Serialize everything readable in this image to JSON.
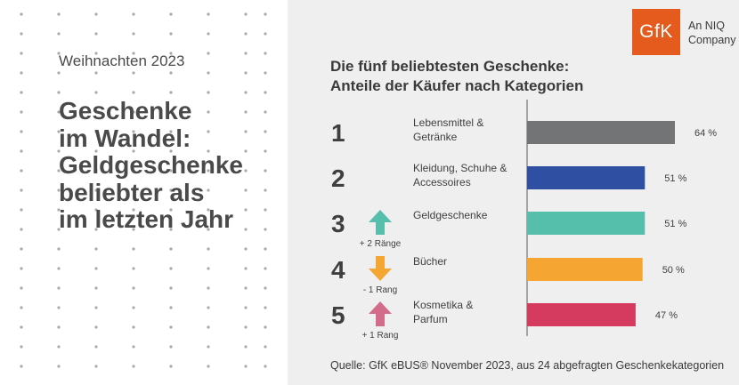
{
  "left": {
    "subtitle": "Weihnachten 2023",
    "title_lines": [
      "Geschenke",
      "im Wandel:",
      "Geldgeschenke",
      "beliebter als",
      "im letzten Jahr"
    ]
  },
  "logo": {
    "mark": "GfK",
    "sub_lines": [
      "An NIQ",
      "Company"
    ],
    "color": "#e55a1d"
  },
  "chart_data": {
    "type": "bar",
    "orientation": "horizontal",
    "title_lines": [
      "Die fünf beliebtesten Geschenke:",
      "Anteile der Käufer nach Kategorien"
    ],
    "source": "Quelle:  GfK eBUS® November 2023, aus 24 abgefragten Geschenkekategorien",
    "unit": "%",
    "xlim": [
      0,
      100
    ],
    "items": [
      {
        "rank": "1",
        "label_lines": [
          "Lebensmittel &",
          "Getränke"
        ],
        "value": 64,
        "value_label": "64 %",
        "color": "#727476",
        "change": null,
        "change_label": ""
      },
      {
        "rank": "2",
        "label_lines": [
          "Kleidung, Schuhe &",
          "Accessoires"
        ],
        "value": 51,
        "value_label": "51 %",
        "color": "#2e4fa2",
        "change": null,
        "change_label": ""
      },
      {
        "rank": "3",
        "label_lines": [
          "Geldgeschenke"
        ],
        "value": 51,
        "value_label": "51 %",
        "color": "#56bfab",
        "change": "up",
        "change_label": "+ 2 Ränge"
      },
      {
        "rank": "4",
        "label_lines": [
          "Bücher"
        ],
        "value": 50,
        "value_label": "50 %",
        "color": "#f5a531",
        "change": "down",
        "change_label": "- 1 Rang"
      },
      {
        "rank": "5",
        "label_lines": [
          "Kosmetika &",
          "Parfum"
        ],
        "value": 47,
        "value_label": "47 %",
        "color": "#d53b5e",
        "change": "up",
        "change_label": "+ 1 Rang"
      }
    ],
    "arrow_colors": {
      "3": "#56bfab",
      "4": "#f5a531",
      "5": "#d36c8a"
    }
  }
}
